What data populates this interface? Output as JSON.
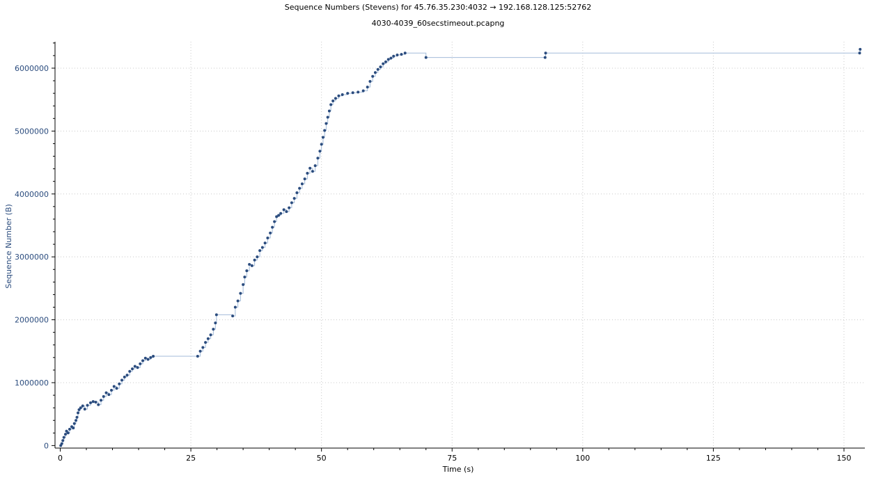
{
  "chart_data": {
    "type": "scatter",
    "title": "Sequence Numbers (Stevens) for 45.76.35.230:4032 → 192.168.128.125:52762",
    "subtitle": "4030-4039_60secstimeout.pcapng",
    "xlabel": "Time (s)",
    "ylabel": "Sequence Number (B)",
    "xlim": [
      -1,
      154
    ],
    "ylim": [
      -40000,
      6420000
    ],
    "x_ticks": [
      0,
      25,
      50,
      75,
      100,
      125,
      150
    ],
    "x_tick_labels": [
      "0",
      "25",
      "50",
      "75",
      "100",
      "125",
      "150"
    ],
    "y_ticks": [
      0,
      1000000,
      2000000,
      3000000,
      4000000,
      5000000,
      6000000
    ],
    "y_tick_labels": [
      "0",
      "1000000",
      "2000000",
      "3000000",
      "4000000",
      "5000000",
      "6000000"
    ],
    "grid": true,
    "colors": {
      "points": "#2b4c7e",
      "line": "#a3bbd9",
      "xaxis_text": "#000000",
      "yaxis_text": "#2b4c7e",
      "grid": "#c8c8c8"
    },
    "series": [
      {
        "marker": "point",
        "points": [
          [
            0.1,
            0
          ],
          [
            0.3,
            30000
          ],
          [
            0.5,
            80000
          ],
          [
            0.7,
            130000
          ],
          [
            1.0,
            180000
          ],
          [
            1.2,
            230000
          ],
          [
            1.5,
            200000
          ],
          [
            1.8,
            260000
          ],
          [
            2.2,
            300000
          ],
          [
            2.5,
            280000
          ],
          [
            2.7,
            350000
          ],
          [
            3.0,
            400000
          ],
          [
            3.2,
            450000
          ],
          [
            3.4,
            520000
          ],
          [
            3.6,
            570000
          ],
          [
            3.9,
            600000
          ],
          [
            4.3,
            630000
          ],
          [
            4.7,
            580000
          ],
          [
            5.2,
            640000
          ],
          [
            5.8,
            680000
          ],
          [
            6.3,
            700000
          ],
          [
            6.8,
            690000
          ],
          [
            7.3,
            650000
          ],
          [
            7.8,
            720000
          ],
          [
            8.3,
            780000
          ],
          [
            8.8,
            840000
          ],
          [
            9.3,
            810000
          ],
          [
            9.8,
            880000
          ],
          [
            10.3,
            940000
          ],
          [
            10.8,
            910000
          ],
          [
            11.3,
            980000
          ],
          [
            11.8,
            1040000
          ],
          [
            12.3,
            1090000
          ],
          [
            12.8,
            1120000
          ],
          [
            13.3,
            1180000
          ],
          [
            13.8,
            1220000
          ],
          [
            14.3,
            1260000
          ],
          [
            14.8,
            1240000
          ],
          [
            15.3,
            1300000
          ],
          [
            15.8,
            1350000
          ],
          [
            16.3,
            1390000
          ],
          [
            16.8,
            1370000
          ],
          [
            17.3,
            1400000
          ],
          [
            17.8,
            1420000
          ],
          [
            26.3,
            1420000
          ],
          [
            26.8,
            1500000
          ],
          [
            27.3,
            1560000
          ],
          [
            27.8,
            1640000
          ],
          [
            28.3,
            1700000
          ],
          [
            28.8,
            1760000
          ],
          [
            29.3,
            1850000
          ],
          [
            29.7,
            1950000
          ],
          [
            29.9,
            2080000
          ],
          [
            33.0,
            2060000
          ],
          [
            33.5,
            2200000
          ],
          [
            34.0,
            2300000
          ],
          [
            34.5,
            2420000
          ],
          [
            35.0,
            2560000
          ],
          [
            35.3,
            2680000
          ],
          [
            35.7,
            2780000
          ],
          [
            36.2,
            2880000
          ],
          [
            36.7,
            2860000
          ],
          [
            37.2,
            2950000
          ],
          [
            37.7,
            3000000
          ],
          [
            38.2,
            3100000
          ],
          [
            38.7,
            3150000
          ],
          [
            39.2,
            3220000
          ],
          [
            39.7,
            3300000
          ],
          [
            40.2,
            3380000
          ],
          [
            40.6,
            3470000
          ],
          [
            41.0,
            3560000
          ],
          [
            41.4,
            3640000
          ],
          [
            41.8,
            3660000
          ],
          [
            42.2,
            3690000
          ],
          [
            42.8,
            3750000
          ],
          [
            43.3,
            3720000
          ],
          [
            43.8,
            3780000
          ],
          [
            44.3,
            3860000
          ],
          [
            44.8,
            3930000
          ],
          [
            45.3,
            4020000
          ],
          [
            45.8,
            4090000
          ],
          [
            46.3,
            4160000
          ],
          [
            46.8,
            4240000
          ],
          [
            47.3,
            4330000
          ],
          [
            47.8,
            4410000
          ],
          [
            48.3,
            4360000
          ],
          [
            48.8,
            4450000
          ],
          [
            49.3,
            4570000
          ],
          [
            49.7,
            4680000
          ],
          [
            50.0,
            4790000
          ],
          [
            50.3,
            4900000
          ],
          [
            50.6,
            5010000
          ],
          [
            50.9,
            5120000
          ],
          [
            51.2,
            5220000
          ],
          [
            51.5,
            5320000
          ],
          [
            51.8,
            5420000
          ],
          [
            52.2,
            5480000
          ],
          [
            52.7,
            5520000
          ],
          [
            53.3,
            5560000
          ],
          [
            54.0,
            5580000
          ],
          [
            55.0,
            5600000
          ],
          [
            56.0,
            5610000
          ],
          [
            57.0,
            5620000
          ],
          [
            58.0,
            5640000
          ],
          [
            58.8,
            5700000
          ],
          [
            59.3,
            5790000
          ],
          [
            59.8,
            5870000
          ],
          [
            60.3,
            5930000
          ],
          [
            60.8,
            5980000
          ],
          [
            61.3,
            6020000
          ],
          [
            61.8,
            6070000
          ],
          [
            62.3,
            6100000
          ],
          [
            62.8,
            6140000
          ],
          [
            63.3,
            6160000
          ],
          [
            63.8,
            6190000
          ],
          [
            64.5,
            6210000
          ],
          [
            65.3,
            6220000
          ],
          [
            66.0,
            6240000
          ],
          [
            70.0,
            6170000
          ],
          [
            92.8,
            6170000
          ],
          [
            92.9,
            6240000
          ],
          [
            153.0,
            6240000
          ],
          [
            153.1,
            6300000
          ]
        ]
      }
    ]
  }
}
